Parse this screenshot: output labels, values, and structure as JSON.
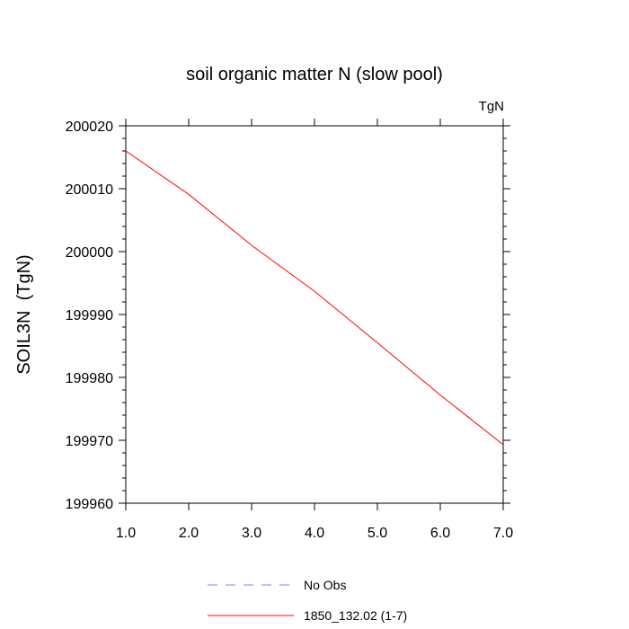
{
  "chart_data": {
    "type": "line",
    "title": "soil organic matter N (slow pool)",
    "units_label": "TgN",
    "ylabel": "SOIL3N  (TgN)",
    "xlabel": "",
    "xlim": [
      1,
      7
    ],
    "ylim": [
      199960,
      200020
    ],
    "x_ticks": [
      "1.0",
      "2.0",
      "3.0",
      "4.0",
      "5.0",
      "6.0",
      "7.0"
    ],
    "y_ticks": [
      "199960",
      "199970",
      "199980",
      "199990",
      "200000",
      "200010",
      "200020"
    ],
    "series": [
      {
        "name": "1850_132.02 (1-7)",
        "color": "#ff0000",
        "dash": "solid",
        "x": [
          1,
          2,
          3,
          4,
          5,
          6,
          7
        ],
        "y": [
          200016.0,
          200009.1,
          200001.0,
          199993.7,
          199985.5,
          199977.2,
          199969.3
        ]
      }
    ],
    "legend": {
      "placement": "bottom-center",
      "entries": [
        {
          "label": "No Obs",
          "color": "#8080ff",
          "dash": "dashed"
        },
        {
          "label": "1850_132.02 (1-7)",
          "color": "#ff0000",
          "dash": "solid"
        }
      ]
    },
    "grid": false
  }
}
